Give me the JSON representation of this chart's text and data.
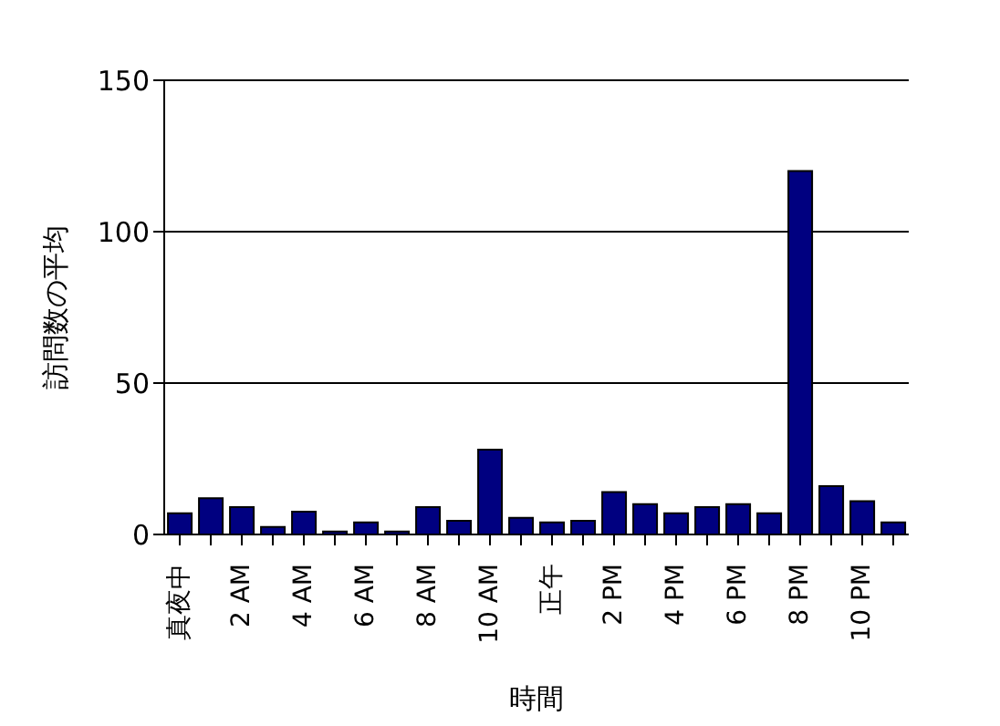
{
  "chart_data": {
    "type": "bar",
    "xlabel": "時間",
    "ylabel": "訪問数の平均",
    "categories": [
      "真夜中",
      null,
      "2 AM",
      null,
      "4 AM",
      null,
      "6 AM",
      null,
      "8 AM",
      null,
      "10 AM",
      null,
      "正午",
      null,
      "2 PM",
      null,
      "4 PM",
      null,
      "6 PM",
      null,
      "8 PM",
      null,
      "10 PM",
      null
    ],
    "values": [
      7,
      12,
      9,
      2.5,
      7.5,
      1,
      4,
      1,
      9,
      4.5,
      28,
      5.5,
      4,
      4.5,
      14,
      10,
      7,
      9,
      10,
      7,
      120,
      16,
      11,
      4
    ],
    "color": "#000080",
    "ylim": [
      0,
      150
    ],
    "yticks": [
      0,
      50,
      100,
      150
    ],
    "grid": "y",
    "legend": false
  }
}
